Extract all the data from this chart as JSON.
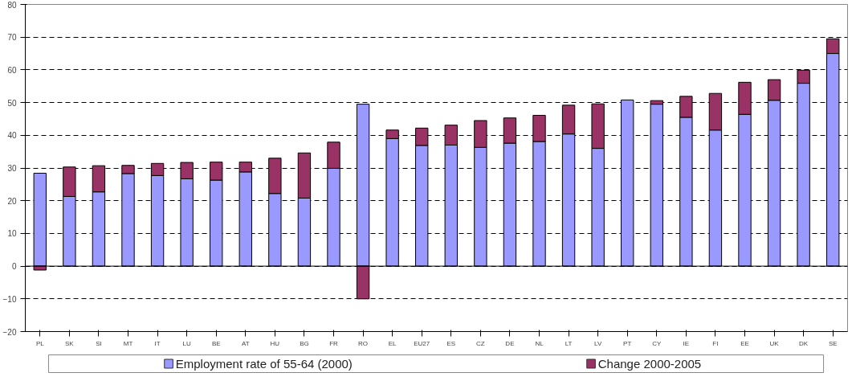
{
  "chart_data": {
    "type": "bar",
    "stacked": true,
    "categories": [
      "PL",
      "SK",
      "SI",
      "MT",
      "IT",
      "LU",
      "BE",
      "AT",
      "HU",
      "BG",
      "FR",
      "RO",
      "EL",
      "EU27",
      "ES",
      "CZ",
      "DE",
      "NL",
      "LT",
      "LV",
      "PT",
      "CY",
      "IE",
      "FI",
      "EE",
      "UK",
      "DK",
      "SE"
    ],
    "series": [
      {
        "name": "Employment rate of 55-64 (2000)",
        "color": "#9999ff",
        "values": [
          28.4,
          21.3,
          22.7,
          28.3,
          27.7,
          26.7,
          26.3,
          28.8,
          22.2,
          20.8,
          29.9,
          49.5,
          39.0,
          36.9,
          37.0,
          36.3,
          37.6,
          38.1,
          40.4,
          36.0,
          50.8,
          49.5,
          45.5,
          41.6,
          46.4,
          50.7,
          55.9,
          65.0
        ]
      },
      {
        "name": "Change 2000-2005",
        "color": "#993366",
        "values": [
          -1.2,
          9.0,
          8.0,
          2.5,
          3.7,
          5.0,
          5.5,
          3.0,
          10.8,
          13.8,
          8.0,
          -10.0,
          2.6,
          5.3,
          6.1,
          8.2,
          7.7,
          8.0,
          8.8,
          13.6,
          null,
          1.1,
          6.4,
          11.2,
          9.8,
          6.3,
          4.0,
          4.5
        ]
      }
    ],
    "ylim": [
      -20,
      80
    ],
    "yticks": [
      -20,
      -10,
      0,
      10,
      20,
      30,
      40,
      50,
      60,
      70,
      80
    ],
    "grid": "y",
    "line_style": "dashed",
    "legend": "bottom"
  }
}
